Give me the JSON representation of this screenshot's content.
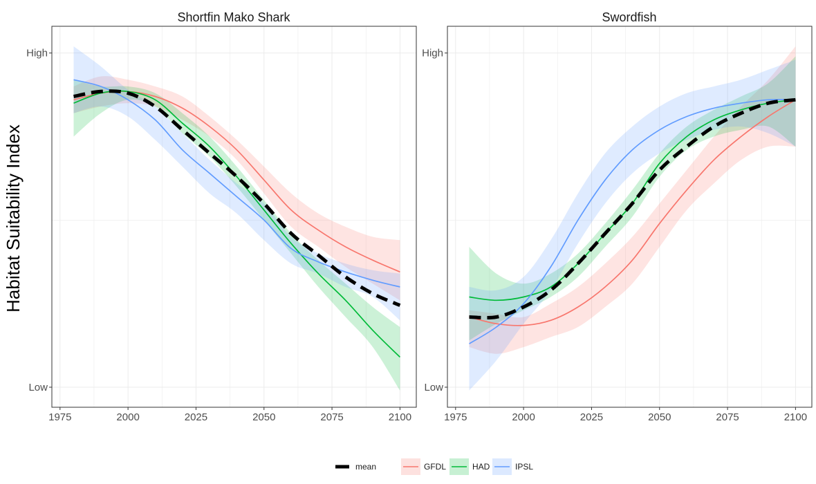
{
  "ylabel": "Habitat Suitability Index",
  "colors": {
    "GFDL": "#F8766D",
    "HAD": "#00BA38",
    "IPSL": "#619CFF",
    "mean": "#000000"
  },
  "legend": {
    "placement": "bottom",
    "mean_label": "mean",
    "model_labels": [
      "GFDL",
      "HAD",
      "IPSL"
    ]
  },
  "chart_data": [
    {
      "type": "line",
      "title": "Shortfin Mako Shark",
      "xlabel": "",
      "ylabel": "Habitat Suitability Index",
      "xlim": [
        1972,
        2106
      ],
      "ylim": [
        -0.06,
        1.08
      ],
      "grid": true,
      "x_ticks": [
        1975,
        2000,
        2025,
        2050,
        2075,
        2100
      ],
      "y_ticks": [
        0,
        1
      ],
      "y_tick_labels": [
        "Low",
        "High"
      ],
      "x": [
        1980,
        1990,
        2000,
        2010,
        2020,
        2030,
        2040,
        2050,
        2060,
        2070,
        2080,
        2090,
        2100
      ],
      "series": [
        {
          "name": "GFDL",
          "values": [
            0.86,
            0.88,
            0.885,
            0.87,
            0.835,
            0.78,
            0.71,
            0.62,
            0.53,
            0.47,
            0.42,
            0.38,
            0.345
          ],
          "band": [
            [
              0.9,
              0.82
            ],
            [
              0.93,
              0.84
            ],
            [
              0.92,
              0.85
            ],
            [
              0.9,
              0.84
            ],
            [
              0.87,
              0.8
            ],
            [
              0.81,
              0.75
            ],
            [
              0.74,
              0.68
            ],
            [
              0.66,
              0.58
            ],
            [
              0.58,
              0.48
            ],
            [
              0.52,
              0.42
            ],
            [
              0.48,
              0.36
            ],
            [
              0.45,
              0.31
            ],
            [
              0.44,
              0.26
            ]
          ]
        },
        {
          "name": "HAD",
          "values": [
            0.85,
            0.88,
            0.885,
            0.86,
            0.79,
            0.72,
            0.63,
            0.53,
            0.43,
            0.34,
            0.26,
            0.17,
            0.09
          ],
          "band": [
            [
              0.92,
              0.75
            ],
            [
              0.9,
              0.82
            ],
            [
              0.9,
              0.86
            ],
            [
              0.88,
              0.84
            ],
            [
              0.82,
              0.76
            ],
            [
              0.75,
              0.69
            ],
            [
              0.66,
              0.6
            ],
            [
              0.56,
              0.5
            ],
            [
              0.46,
              0.4
            ],
            [
              0.38,
              0.3
            ],
            [
              0.31,
              0.21
            ],
            [
              0.24,
              0.12
            ],
            [
              0.18,
              -0.01
            ]
          ]
        },
        {
          "name": "IPSL",
          "values": [
            0.92,
            0.9,
            0.86,
            0.8,
            0.71,
            0.64,
            0.57,
            0.5,
            0.415,
            0.375,
            0.345,
            0.32,
            0.3
          ],
          "band": [
            [
              1.02,
              0.82
            ],
            [
              0.96,
              0.84
            ],
            [
              0.89,
              0.81
            ],
            [
              0.84,
              0.74
            ],
            [
              0.76,
              0.66
            ],
            [
              0.68,
              0.58
            ],
            [
              0.61,
              0.52
            ],
            [
              0.55,
              0.44
            ],
            [
              0.45,
              0.37
            ],
            [
              0.4,
              0.34
            ],
            [
              0.37,
              0.3
            ],
            [
              0.35,
              0.27
            ],
            [
              0.34,
              0.2
            ]
          ]
        },
        {
          "name": "mean",
          "values": [
            0.87,
            0.885,
            0.88,
            0.84,
            0.77,
            0.7,
            0.63,
            0.55,
            0.46,
            0.395,
            0.33,
            0.28,
            0.245
          ]
        }
      ]
    },
    {
      "type": "line",
      "title": "Swordfish",
      "xlabel": "",
      "ylabel": "",
      "xlim": [
        1972,
        2106
      ],
      "ylim": [
        -0.06,
        1.08
      ],
      "grid": true,
      "x_ticks": [
        1975,
        2000,
        2025,
        2050,
        2075,
        2100
      ],
      "y_ticks": [
        0,
        1
      ],
      "y_tick_labels": [
        "Low",
        "High"
      ],
      "x": [
        1980,
        1990,
        2000,
        2010,
        2020,
        2030,
        2040,
        2050,
        2060,
        2070,
        2080,
        2090,
        2100
      ],
      "series": [
        {
          "name": "GFDL",
          "values": [
            0.21,
            0.19,
            0.185,
            0.2,
            0.24,
            0.3,
            0.38,
            0.49,
            0.59,
            0.68,
            0.75,
            0.81,
            0.86
          ],
          "band": [
            [
              0.23,
              0.12
            ],
            [
              0.22,
              0.1
            ],
            [
              0.21,
              0.12
            ],
            [
              0.25,
              0.15
            ],
            [
              0.3,
              0.18
            ],
            [
              0.37,
              0.24
            ],
            [
              0.45,
              0.31
            ],
            [
              0.55,
              0.42
            ],
            [
              0.65,
              0.53
            ],
            [
              0.75,
              0.61
            ],
            [
              0.84,
              0.68
            ],
            [
              0.92,
              0.72
            ],
            [
              1.02,
              0.72
            ]
          ]
        },
        {
          "name": "HAD",
          "values": [
            0.27,
            0.26,
            0.27,
            0.3,
            0.37,
            0.46,
            0.55,
            0.67,
            0.75,
            0.8,
            0.83,
            0.85,
            0.86
          ],
          "band": [
            [
              0.42,
              0.14
            ],
            [
              0.34,
              0.19
            ],
            [
              0.31,
              0.23
            ],
            [
              0.34,
              0.27
            ],
            [
              0.4,
              0.33
            ],
            [
              0.49,
              0.42
            ],
            [
              0.59,
              0.51
            ],
            [
              0.7,
              0.63
            ],
            [
              0.78,
              0.71
            ],
            [
              0.83,
              0.75
            ],
            [
              0.87,
              0.77
            ],
            [
              0.91,
              0.78
            ],
            [
              0.99,
              0.72
            ]
          ]
        },
        {
          "name": "IPSL",
          "values": [
            0.13,
            0.18,
            0.25,
            0.36,
            0.5,
            0.62,
            0.71,
            0.77,
            0.81,
            0.835,
            0.85,
            0.86,
            0.86
          ],
          "band": [
            [
              0.3,
              -0.01
            ],
            [
              0.29,
              0.08
            ],
            [
              0.33,
              0.19
            ],
            [
              0.44,
              0.29
            ],
            [
              0.58,
              0.43
            ],
            [
              0.7,
              0.55
            ],
            [
              0.78,
              0.64
            ],
            [
              0.84,
              0.7
            ],
            [
              0.88,
              0.74
            ],
            [
              0.9,
              0.77
            ],
            [
              0.92,
              0.78
            ],
            [
              0.95,
              0.76
            ],
            [
              0.98,
              0.72
            ]
          ]
        },
        {
          "name": "mean",
          "values": [
            0.21,
            0.21,
            0.24,
            0.29,
            0.37,
            0.46,
            0.55,
            0.65,
            0.72,
            0.78,
            0.82,
            0.85,
            0.86
          ]
        }
      ]
    }
  ]
}
